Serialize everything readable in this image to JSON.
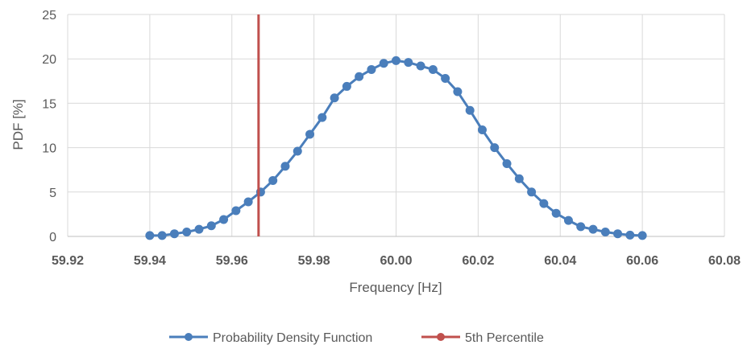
{
  "chart_data": {
    "type": "line",
    "xlabel": "Frequency [Hz]",
    "ylabel": "PDF [%]",
    "xlim": [
      59.92,
      60.08
    ],
    "ylim": [
      0,
      25
    ],
    "x_ticks": [
      "59.92",
      "59.94",
      "59.96",
      "59.98",
      "60.00",
      "60.02",
      "60.04",
      "60.06",
      "60.08"
    ],
    "y_ticks": [
      "0",
      "5",
      "10",
      "15",
      "20",
      "25"
    ],
    "grid": true,
    "legend_position": "bottom",
    "series": [
      {
        "name": "Probability Density Function",
        "color": "#4a7ebb",
        "x": [
          59.94,
          59.943,
          59.946,
          59.949,
          59.952,
          59.955,
          59.958,
          59.961,
          59.964,
          59.967,
          59.97,
          59.973,
          59.976,
          59.979,
          59.982,
          59.985,
          59.988,
          59.991,
          59.994,
          59.997,
          60.0,
          60.003,
          60.006,
          60.009,
          60.012,
          60.015,
          60.018,
          60.021,
          60.024,
          60.027,
          60.03,
          60.033,
          60.036,
          60.039,
          60.042,
          60.045,
          60.048,
          60.051,
          60.054,
          60.057,
          60.06
        ],
        "values": [
          0.1,
          0.1,
          0.3,
          0.5,
          0.8,
          1.2,
          1.9,
          2.9,
          3.9,
          5.0,
          6.3,
          7.9,
          9.6,
          11.5,
          13.4,
          15.6,
          16.9,
          18.0,
          18.8,
          19.5,
          19.8,
          19.6,
          19.2,
          18.8,
          17.8,
          16.3,
          14.2,
          12.0,
          10.0,
          8.2,
          6.5,
          5.0,
          3.7,
          2.6,
          1.8,
          1.1,
          0.8,
          0.5,
          0.3,
          0.15,
          0.1
        ]
      },
      {
        "name": "5th Percentile",
        "color": "#c0504d",
        "x": [
          59.9665,
          59.9665
        ],
        "values": [
          0,
          25
        ]
      }
    ]
  }
}
